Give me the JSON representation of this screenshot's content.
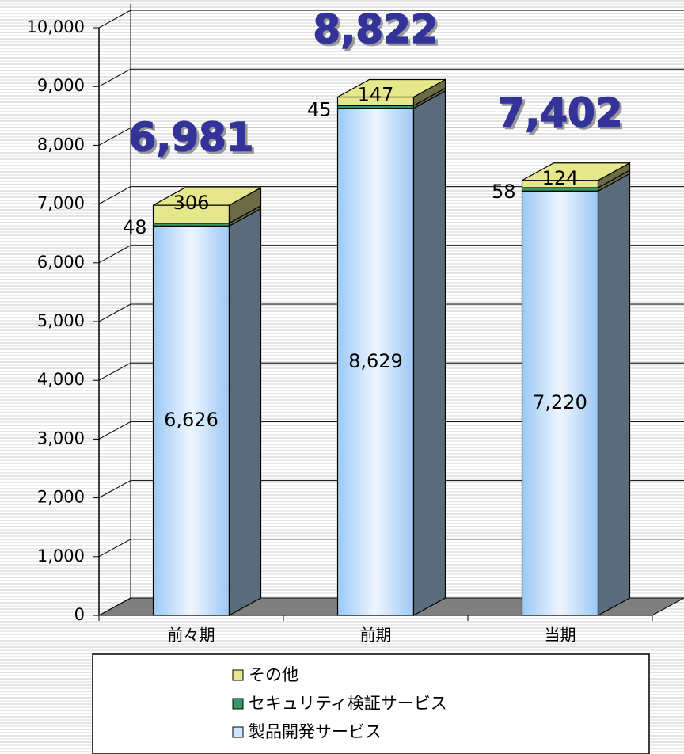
{
  "chart_data": {
    "type": "bar3d_stacked",
    "categories": [
      "前々期",
      "前期",
      "当期"
    ],
    "series": [
      {
        "name": "製品開発サービス",
        "color": "#cfe6ff",
        "values": [
          6626,
          8629,
          7220
        ],
        "value_labels": [
          "6,626",
          "8,629",
          "7,220"
        ]
      },
      {
        "name": "セキュリティ検証サービス",
        "color": "#339966",
        "values": [
          48,
          45,
          58
        ]
      },
      {
        "name": "その他",
        "color": "#e6e68a",
        "values": [
          306,
          147,
          124
        ]
      }
    ],
    "totals": {
      "values": [
        6981,
        8822,
        7402
      ],
      "value_labels": [
        "6,981",
        "8,822",
        "7,402"
      ]
    },
    "ylim": [
      0,
      10000
    ],
    "yticks": [
      0,
      {
        "value": 1000,
        "label": "1,000"
      },
      {
        "value": 2000,
        "label": "2,000"
      },
      {
        "value": 3000,
        "label": "3,000"
      },
      {
        "value": 4000,
        "label": "4,000"
      },
      {
        "value": 5000,
        "label": "5,000"
      },
      {
        "value": 6000,
        "label": "6,000"
      },
      {
        "value": 7000,
        "label": "7,000"
      },
      {
        "value": 8000,
        "label": "8,000"
      },
      {
        "value": 9000,
        "label": "9,000"
      },
      {
        "value": 10000,
        "label": "10,000"
      }
    ],
    "grid": true
  }
}
